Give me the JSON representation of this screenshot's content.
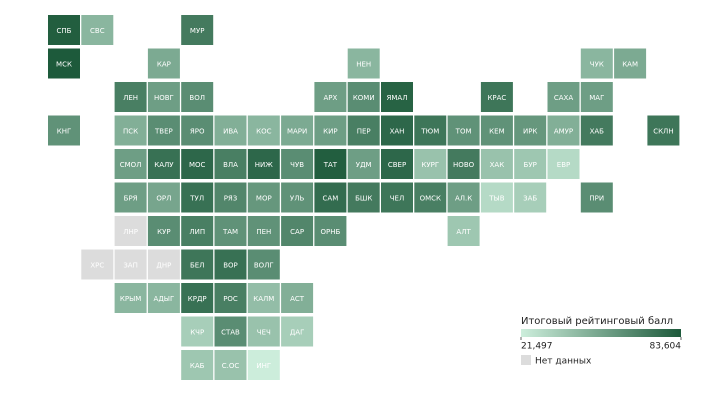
{
  "chart_data": {
    "type": "tilemap",
    "categories": [
      "СПБ",
      "СВС",
      "МУР",
      "МСК",
      "КАР",
      "НЕН",
      "ЧУК",
      "КАМ",
      "ЛЕН",
      "НОВГ",
      "ВОЛ",
      "АРХ",
      "КОМИ",
      "ЯМАЛ",
      "КРАС",
      "САХА",
      "МАГ",
      "КНГ",
      "ПСК",
      "ТВЕР",
      "ЯРО",
      "ИВА",
      "КОС",
      "МАРИ",
      "КИР",
      "ПЕР",
      "ХАН",
      "ТЮМ",
      "ТОМ",
      "КЕМ",
      "ИРК",
      "АМУР",
      "ХАБ",
      "СКЛН",
      "СМОЛ",
      "КАЛУ",
      "МОС",
      "ВЛА",
      "НИЖ",
      "ЧУВ",
      "ТАТ",
      "УДМ",
      "СВЕР",
      "КУРГ",
      "НОВО",
      "ХАК",
      "БУР",
      "ЕВР",
      "БРЯ",
      "ОРЛ",
      "ТУЛ",
      "РЯЗ",
      "МОР",
      "УЛЬ",
      "САМ",
      "БШК",
      "ЧЕЛ",
      "ОМСК",
      "АЛ.К",
      "ТЫВ",
      "ЗАБ",
      "ПРИ",
      "ЛНР",
      "КУР",
      "ЛИП",
      "ТАМ",
      "ПЕН",
      "САР",
      "ОРНБ",
      "АЛТ",
      "ХРС",
      "ЗАП",
      "ДНР",
      "БЕЛ",
      "ВОР",
      "ВОЛГ",
      "КРЫМ",
      "АДЫГ",
      "КРДР",
      "РОС",
      "КАЛМ",
      "АСТ",
      "КЧР",
      "СТАВ",
      "ЧЕЧ",
      "ДАГ",
      "КАБ",
      "С.ОС",
      "ИНГ"
    ],
    "values": [
      82,
      45,
      70,
      83.6,
      50,
      45,
      45,
      50,
      68,
      55,
      62,
      55,
      62,
      80,
      72,
      55,
      55,
      60,
      48,
      62,
      62,
      48,
      45,
      50,
      55,
      68,
      78,
      72,
      60,
      60,
      58,
      48,
      70,
      72,
      55,
      74,
      78,
      68,
      78,
      62,
      82,
      55,
      78,
      40,
      70,
      40,
      38,
      30,
      55,
      52,
      74,
      65,
      58,
      60,
      76,
      70,
      72,
      68,
      55,
      30,
      35,
      62,
      null,
      62,
      68,
      60,
      60,
      65,
      62,
      38,
      null,
      null,
      null,
      72,
      74,
      62,
      45,
      45,
      74,
      68,
      42,
      48,
      35,
      62,
      40,
      35,
      38,
      40,
      22
    ],
    "colorbar": {
      "title": "Итоговый рейтинговый балл",
      "lim": [
        21.497,
        83.604
      ],
      "ticks": [
        {
          "value": 21.497,
          "label": "21,497"
        },
        {
          "value": 83.604,
          "label": "83,604"
        }
      ],
      "colors": [
        "#cdeedc",
        "#1d5a3b"
      ]
    },
    "missing_label": "Нет данных",
    "missing_color": "#dcdcdc"
  }
}
